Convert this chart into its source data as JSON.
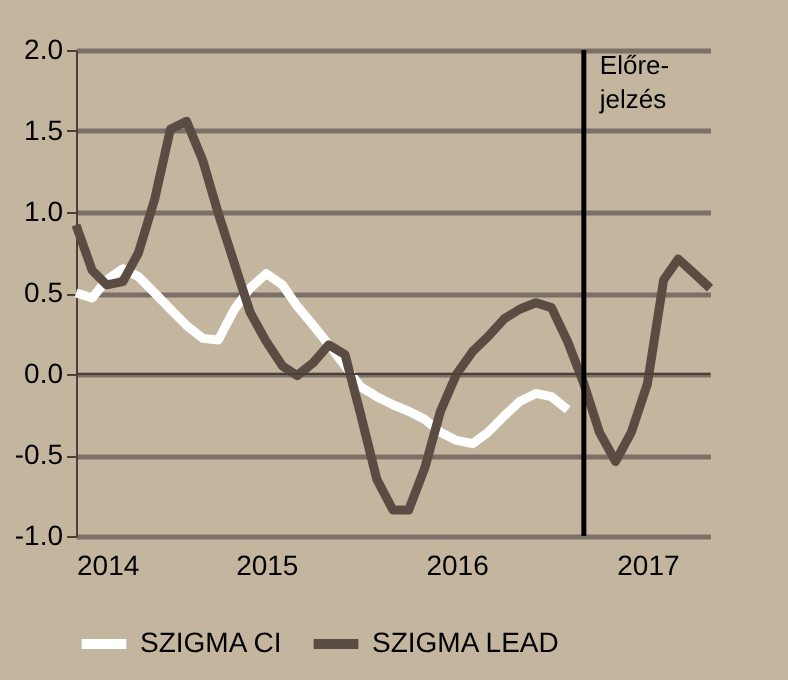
{
  "chart_data": {
    "type": "line",
    "x": [
      "2014-01",
      "2014-02",
      "2014-03",
      "2014-04",
      "2014-05",
      "2014-06",
      "2014-07",
      "2014-08",
      "2014-09",
      "2014-10",
      "2014-11",
      "2014-12",
      "2015-01",
      "2015-02",
      "2015-03",
      "2015-04",
      "2015-05",
      "2015-06",
      "2015-07",
      "2015-08",
      "2015-09",
      "2015-10",
      "2015-11",
      "2015-12",
      "2016-01",
      "2016-02",
      "2016-03",
      "2016-04",
      "2016-05",
      "2016-06",
      "2016-07",
      "2016-08",
      "2016-09",
      "2016-10",
      "2016-11",
      "2016-12",
      "2017-01",
      "2017-02",
      "2017-03",
      "2017-04",
      "2017-05"
    ],
    "series": [
      {
        "name": "SZIGMA CI",
        "color": "#ffffff",
        "values": [
          0.5,
          0.47,
          0.58,
          0.65,
          0.6,
          0.5,
          0.4,
          0.3,
          0.22,
          0.21,
          0.4,
          0.53,
          0.62,
          0.55,
          0.42,
          0.3,
          0.18,
          0.05,
          -0.08,
          -0.14,
          -0.19,
          -0.23,
          -0.28,
          -0.36,
          -0.41,
          -0.43,
          -0.36,
          -0.26,
          -0.17,
          -0.12,
          -0.14,
          -0.22,
          null,
          null,
          null,
          null,
          null,
          null,
          null,
          null,
          null
        ]
      },
      {
        "name": "SZIGMA LEAD",
        "color": "#5a4c42",
        "values": [
          0.92,
          0.64,
          0.55,
          0.57,
          0.75,
          1.08,
          1.51,
          1.56,
          1.32,
          0.99,
          0.68,
          0.38,
          0.2,
          0.05,
          -0.01,
          0.07,
          0.18,
          0.12,
          -0.25,
          -0.65,
          -0.84,
          -0.84,
          -0.58,
          -0.23,
          0.0,
          0.14,
          0.23,
          0.34,
          0.4,
          0.44,
          0.41,
          0.2,
          -0.06,
          -0.36,
          -0.54,
          -0.36,
          -0.06,
          0.58,
          0.71,
          0.62,
          0.53
        ]
      }
    ],
    "xlim": [
      "2014-01",
      "2017-05"
    ],
    "xticks": [
      {
        "value": "2014-01",
        "label": "2014"
      },
      {
        "value": "2015-01",
        "label": "2015"
      },
      {
        "value": "2016-01",
        "label": "2016"
      },
      {
        "value": "2017-01",
        "label": "2017"
      }
    ],
    "ylim": [
      -1.0,
      2.0
    ],
    "yticks": [
      {
        "value": -1.0,
        "label": "-1.0"
      },
      {
        "value": -0.5,
        "label": "-0.5"
      },
      {
        "value": 0,
        "label": "0.0"
      },
      {
        "value": 0.5,
        "label": "0.5"
      },
      {
        "value": 1.0,
        "label": "1.0"
      },
      {
        "value": 1.5,
        "label": "1.5"
      },
      {
        "value": 2.0,
        "label": "2.0"
      }
    ],
    "ref_lines": [
      {
        "axis": "x",
        "value": "2016-09",
        "label": "Előre-jelzés",
        "color": "#000000"
      }
    ],
    "grid": "y",
    "legend": "bottom",
    "line_style": "solid",
    "marker": "none"
  }
}
